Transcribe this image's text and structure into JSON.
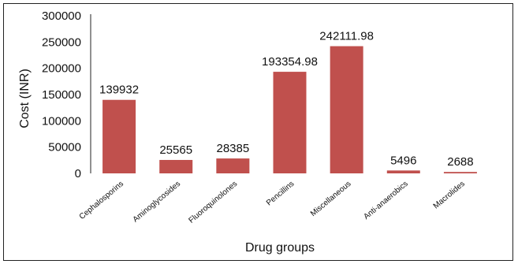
{
  "chart_data": {
    "type": "bar",
    "title": "",
    "xlabel": "Drug groups",
    "ylabel": "Cost (INR)",
    "ylim": [
      0,
      300000
    ],
    "yticks": [
      0,
      50000,
      100000,
      150000,
      200000,
      250000,
      300000
    ],
    "ytick_labels": [
      "0",
      "50000",
      "100000",
      "150000",
      "200000",
      "250000",
      "300000"
    ],
    "grid": false,
    "legend": "none",
    "bar_color": "#C0504D",
    "categories": [
      "Cephalosporins",
      "Aminoglycosides",
      "Fluoroquinolones",
      "Pencillins",
      "Miscellaneous",
      "Anti-anaerobics",
      "Macrolides"
    ],
    "values": [
      139932,
      25565,
      28385,
      193354.98,
      242111.98,
      5496,
      2688
    ],
    "data_labels": [
      "139932",
      "25565",
      "28385",
      "193354.98",
      "242111.98",
      "5496",
      "2688"
    ]
  }
}
